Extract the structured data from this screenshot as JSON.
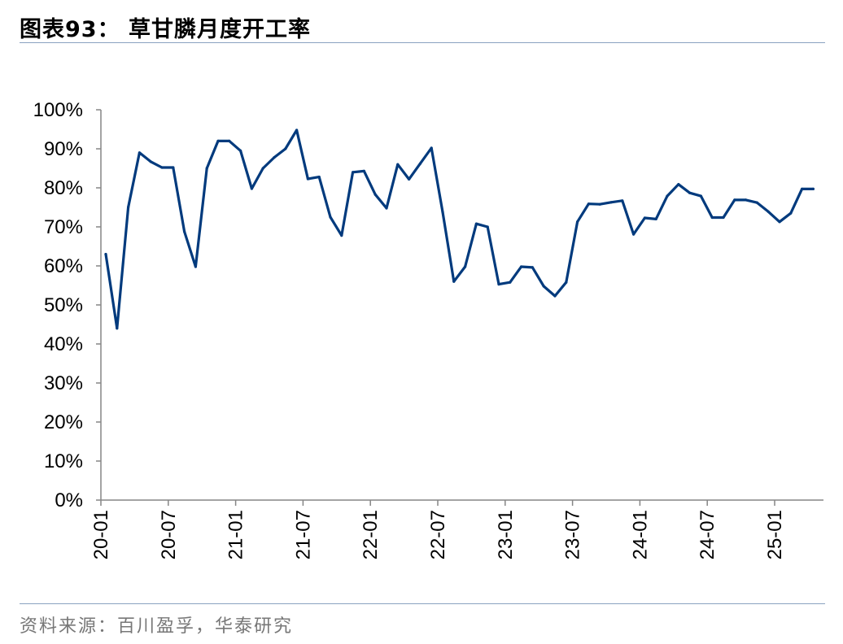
{
  "title": "图表93：  草甘膦月度开工率",
  "source": "资料来源：百川盈孚，华泰研究",
  "chart_data": {
    "type": "line",
    "title": "",
    "xlabel": "",
    "ylabel": "",
    "ylim": [
      0,
      100
    ],
    "y_tick_labels": [
      "0%",
      "10%",
      "20%",
      "30%",
      "40%",
      "50%",
      "60%",
      "70%",
      "80%",
      "90%",
      "100%"
    ],
    "x_tick_labels": [
      "20-01",
      "20-07",
      "21-01",
      "21-07",
      "22-01",
      "22-07",
      "23-01",
      "23-07",
      "24-01",
      "24-07",
      "25-01"
    ],
    "x": [
      "20-01",
      "20-02",
      "20-03",
      "20-04",
      "20-05",
      "20-06",
      "20-07",
      "20-08",
      "20-09",
      "20-10",
      "20-11",
      "20-12",
      "21-01",
      "21-02",
      "21-03",
      "21-04",
      "21-05",
      "21-06",
      "21-07",
      "21-08",
      "21-09",
      "21-10",
      "21-11",
      "21-12",
      "22-01",
      "22-02",
      "22-03",
      "22-04",
      "22-05",
      "22-06",
      "22-07",
      "22-08",
      "22-09",
      "22-10",
      "22-11",
      "22-12",
      "23-01",
      "23-02",
      "23-03",
      "23-04",
      "23-05",
      "23-06",
      "23-07",
      "23-08",
      "23-09",
      "23-10",
      "23-11",
      "23-12",
      "24-01",
      "24-02",
      "24-03",
      "24-04",
      "24-05",
      "24-06",
      "24-07",
      "24-08",
      "24-09",
      "24-10",
      "24-11",
      "24-12",
      "25-01",
      "25-02",
      "25-03",
      "25-04"
    ],
    "series": [
      {
        "color": "#003a7d",
        "values": [
          63,
          44,
          75,
          89,
          86.7,
          85.2,
          85.2,
          68.8,
          59.8,
          85,
          92,
          92,
          89.5,
          79.8,
          85,
          87.8,
          90,
          94.8,
          82.3,
          82.8,
          72.5,
          67.8,
          84,
          84.3,
          78.3,
          74.8,
          86,
          82.2,
          86.2,
          90.2,
          73.8,
          56,
          59.8,
          70.8,
          70,
          55.3,
          55.8,
          59.8,
          59.6,
          54.8,
          52.3,
          55.8,
          71.3,
          75.9,
          75.8,
          76.3,
          76.7,
          68.1,
          72.3,
          72,
          77.9,
          80.9,
          78.7,
          77.9,
          72.4,
          72.4,
          76.9,
          76.9,
          76.2,
          73.9,
          71.3,
          73.5,
          79.7,
          79.7
        ]
      }
    ],
    "grid": false,
    "legend": "none"
  }
}
